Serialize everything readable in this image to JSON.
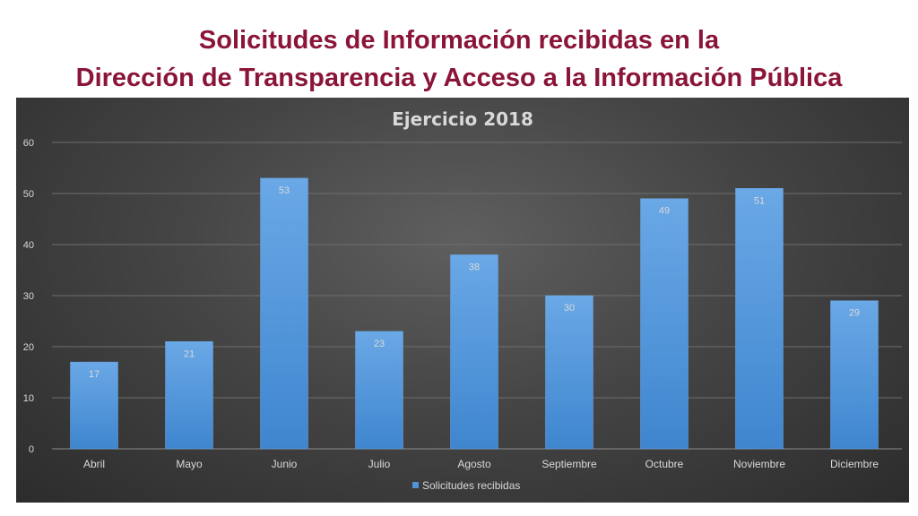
{
  "slide": {
    "title_line1": "Solicitudes de Información recibidas en la",
    "title_line2": "Dirección de Transparencia y Acceso a la Información Pública"
  },
  "colors": {
    "title": "#8a1538",
    "bar": "#4f93d8",
    "bar_highlight": "#6aa8e6",
    "panel_text": "#d9d9d9",
    "grid": "#6e6e6e"
  },
  "chart_data": {
    "type": "bar",
    "title": "Ejercicio 2018",
    "categories": [
      "Abril",
      "Mayo",
      "Junio",
      "Julio",
      "Agosto",
      "Septiembre",
      "Octubre",
      "Noviembre",
      "Diciembre"
    ],
    "series": [
      {
        "name": "Solicitudes recibidas",
        "values": [
          17,
          21,
          53,
          23,
          38,
          30,
          49,
          51,
          29
        ]
      }
    ],
    "ylim": [
      0,
      60
    ],
    "yticks": [
      0,
      10,
      20,
      30,
      40,
      50,
      60
    ],
    "grid": true,
    "data_labels": true,
    "legend_position": "bottom"
  }
}
